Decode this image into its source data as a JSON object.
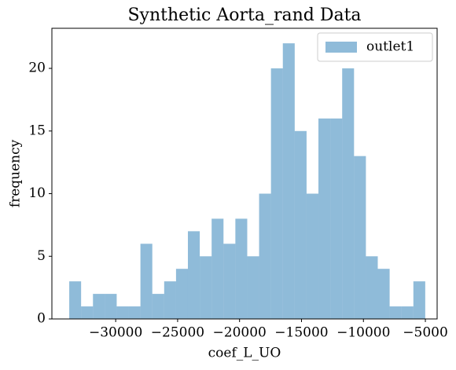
{
  "chart_data": {
    "type": "histogram",
    "title": "Synthetic Aorta_rand Data",
    "x_label": "coef_L_UO",
    "y_label": "frequency",
    "bins": [
      -33750,
      -32792,
      -31834,
      -30876,
      -29918,
      -28960,
      -28002,
      -27044,
      -26086,
      -25128,
      -24170,
      -23212,
      -22254,
      -21296,
      -20338,
      -19380,
      -18422,
      -17464,
      -16506,
      -15548,
      -14590,
      -13632,
      -12674,
      -11716,
      -10758,
      -9800,
      -8842,
      -7884,
      -6926,
      -5968,
      -5010
    ],
    "series": [
      {
        "name": "outlet1",
        "color": "#1f77b4",
        "alpha": 0.5,
        "values": [
          3,
          1,
          2,
          2,
          1,
          1,
          6,
          2,
          3,
          4,
          7,
          5,
          8,
          6,
          8,
          5,
          10,
          20,
          22,
          15,
          10,
          16,
          16,
          20,
          13,
          5,
          4,
          1,
          1,
          3
        ]
      }
    ],
    "xlim": [
      -35150,
      -4050
    ],
    "ylim": [
      0,
      23.2
    ],
    "xticks": [
      {
        "value": -30000,
        "label": "−30000"
      },
      {
        "value": -25000,
        "label": "−25000"
      },
      {
        "value": -20000,
        "label": "−20000"
      },
      {
        "value": -15000,
        "label": "−15000"
      },
      {
        "value": -10000,
        "label": "−10000"
      },
      {
        "value": -5000,
        "label": "−5000"
      }
    ],
    "yticks": [
      0,
      5,
      10,
      15,
      20
    ],
    "legend": "upper right"
  }
}
